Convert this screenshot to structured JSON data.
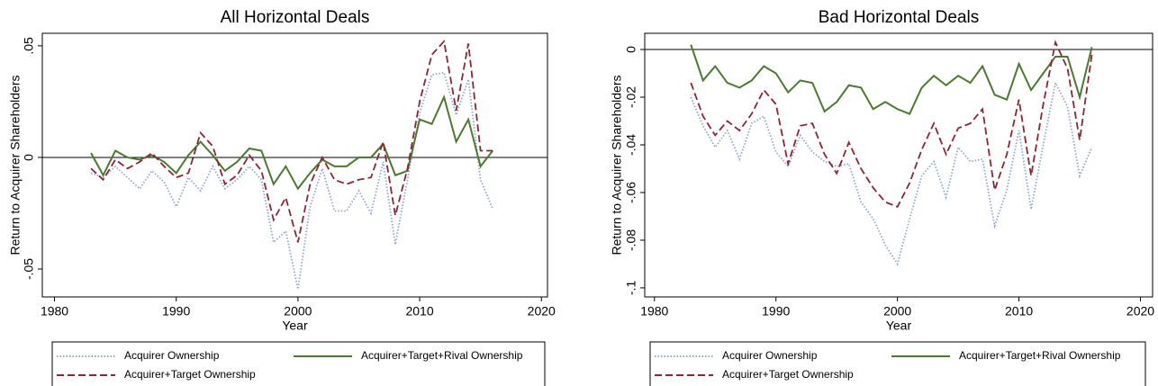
{
  "chart_data": [
    {
      "type": "line",
      "title": "All Horizontal Deals",
      "xlabel": "Year",
      "ylabel": "Return to Acquirer Shareholders",
      "x": [
        1983,
        1984,
        1985,
        1986,
        1987,
        1988,
        1989,
        1990,
        1991,
        1992,
        1993,
        1994,
        1995,
        1996,
        1997,
        1998,
        1999,
        2000,
        2001,
        2002,
        2003,
        2004,
        2005,
        2006,
        2007,
        2008,
        2009,
        2010,
        2011,
        2012,
        2013,
        2014,
        2015,
        2016
      ],
      "xlim": [
        1979,
        2020.5
      ],
      "xticks": [
        1980,
        1990,
        2000,
        2010,
        2020
      ],
      "ylim": [
        -0.0625,
        0.0556
      ],
      "yticks": [
        {
          "value": -0.05,
          "label": "-.05"
        },
        0,
        {
          "value": 0.05,
          "label": ".05"
        }
      ],
      "hline": 0,
      "series": [
        {
          "name": "Acquirer Ownership",
          "color": "#8fa6cf",
          "style": "dotted",
          "values": [
            -0.007,
            -0.009,
            -0.004,
            -0.009,
            -0.014,
            -0.006,
            -0.011,
            -0.022,
            -0.009,
            -0.015,
            -0.004,
            -0.014,
            -0.01,
            -0.004,
            -0.01,
            -0.038,
            -0.033,
            -0.059,
            -0.022,
            -0.005,
            -0.024,
            -0.024,
            -0.015,
            -0.025,
            -0.002,
            -0.039,
            -0.01,
            0.02,
            0.037,
            0.038,
            0.019,
            0.035,
            -0.01,
            -0.023
          ]
        },
        {
          "name": "Acquirer+Target+Rival Ownership",
          "color": "#4a7a2c",
          "style": "solid",
          "values": [
            0.002,
            -0.008,
            0.003,
            0,
            -0.001,
            0.001,
            -0.002,
            -0.007,
            0.001,
            0.007,
            0.001,
            -0.006,
            -0.002,
            0.004,
            0.003,
            -0.012,
            -0.004,
            -0.014,
            -0.007,
            -0.001,
            -0.004,
            -0.004,
            0,
            0,
            0.006,
            -0.008,
            -0.006,
            0.017,
            0.015,
            0.027,
            0.007,
            0.017,
            -0.004,
            0.003
          ]
        },
        {
          "name": "Acquirer+Target Ownership",
          "color": "#8e2434",
          "style": "dashed",
          "values": [
            -0.005,
            -0.01,
            -0.001,
            -0.005,
            -0.002,
            0.002,
            -0.004,
            -0.009,
            -0.007,
            0.011,
            0.005,
            -0.012,
            -0.008,
            0.001,
            -0.006,
            -0.028,
            -0.018,
            -0.038,
            -0.012,
            0,
            -0.01,
            -0.012,
            -0.01,
            -0.009,
            0.007,
            -0.026,
            -0.005,
            0.025,
            0.046,
            0.052,
            0.021,
            0.051,
            0.003,
            0.003
          ]
        }
      ]
    },
    {
      "type": "line",
      "title": "Bad Horizontal Deals",
      "xlabel": "Year",
      "ylabel": "Return to Acquirer Shareholders",
      "x": [
        1983,
        1984,
        1985,
        1986,
        1987,
        1988,
        1989,
        1990,
        1991,
        1992,
        1993,
        1994,
        1995,
        1996,
        1997,
        1998,
        1999,
        2000,
        2001,
        2002,
        2003,
        2004,
        2005,
        2006,
        2007,
        2008,
        2009,
        2010,
        2011,
        2012,
        2013,
        2014,
        2015,
        2016
      ],
      "xlim": [
        1979.2,
        2021
      ],
      "xticks": [
        1980,
        1990,
        2000,
        2010,
        2020
      ],
      "ylim": [
        -0.1038,
        0.0068
      ],
      "yticks": [
        {
          "value": -0.1,
          "label": "-.1"
        },
        {
          "value": -0.08,
          "label": "-.08"
        },
        {
          "value": -0.06,
          "label": "-.06"
        },
        {
          "value": -0.04,
          "label": "-.04"
        },
        {
          "value": -0.02,
          "label": "-.02"
        },
        0
      ],
      "hline": 0,
      "series": [
        {
          "name": "Acquirer Ownership",
          "color": "#8fa6cf",
          "style": "dotted",
          "values": [
            -0.02,
            -0.032,
            -0.041,
            -0.034,
            -0.046,
            -0.031,
            -0.028,
            -0.043,
            -0.049,
            -0.036,
            -0.043,
            -0.047,
            -0.049,
            -0.048,
            -0.064,
            -0.071,
            -0.082,
            -0.09,
            -0.071,
            -0.053,
            -0.047,
            -0.062,
            -0.041,
            -0.047,
            -0.046,
            -0.074,
            -0.059,
            -0.034,
            -0.067,
            -0.04,
            -0.014,
            -0.024,
            -0.053,
            -0.041
          ]
        },
        {
          "name": "Acquirer+Target+Rival Ownership",
          "color": "#4a7a2c",
          "style": "solid",
          "values": [
            0.002,
            -0.013,
            -0.007,
            -0.014,
            -0.016,
            -0.013,
            -0.007,
            -0.01,
            -0.018,
            -0.013,
            -0.014,
            -0.026,
            -0.022,
            -0.015,
            -0.016,
            -0.025,
            -0.022,
            -0.025,
            -0.027,
            -0.016,
            -0.011,
            -0.015,
            -0.011,
            -0.014,
            -0.007,
            -0.019,
            -0.021,
            -0.006,
            -0.017,
            -0.01,
            -0.003,
            -0.003,
            -0.02,
            0.001
          ]
        },
        {
          "name": "Acquirer+Target Ownership",
          "color": "#8e2434",
          "style": "dashed",
          "values": [
            -0.014,
            -0.028,
            -0.036,
            -0.03,
            -0.034,
            -0.027,
            -0.017,
            -0.023,
            -0.048,
            -0.032,
            -0.031,
            -0.044,
            -0.052,
            -0.039,
            -0.05,
            -0.058,
            -0.064,
            -0.066,
            -0.056,
            -0.042,
            -0.031,
            -0.044,
            -0.033,
            -0.031,
            -0.025,
            -0.059,
            -0.044,
            -0.021,
            -0.053,
            -0.023,
            0.003,
            -0.008,
            -0.038,
            -0.002
          ]
        }
      ]
    }
  ]
}
